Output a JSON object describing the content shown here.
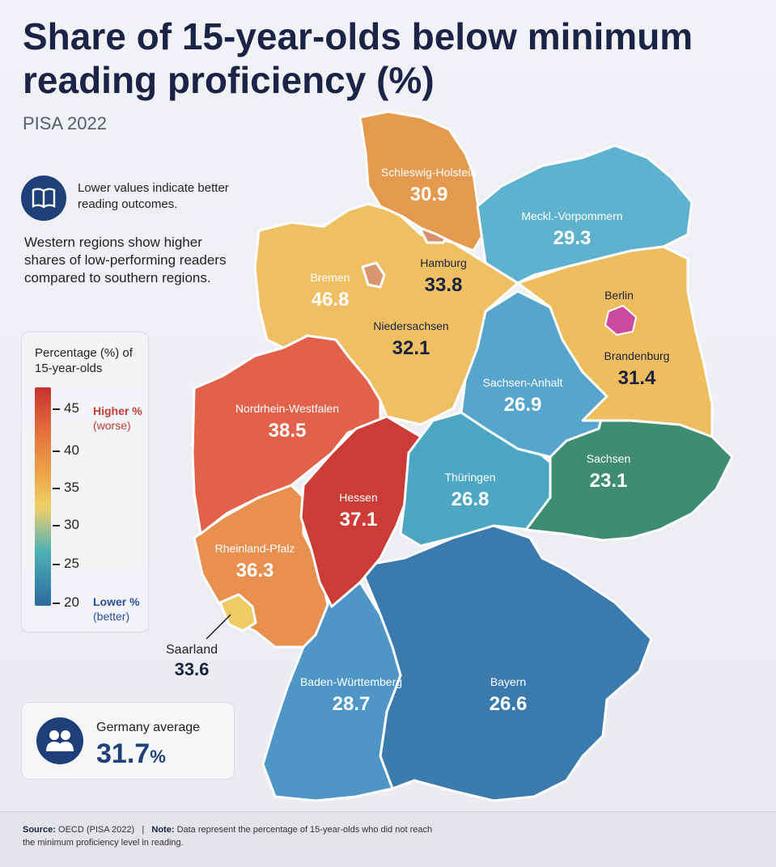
{
  "title": "Share of 15-year-olds below minimum reading proficiency (%)",
  "subtitle": "PISA 2022",
  "note_icon": "book-icon",
  "note": "Lower values indicate better reading outcomes.",
  "west_note": "Western regions show higher shares of low-performing readers compared to southern regions.",
  "legend": {
    "title": "Percentage (%) of 15-year-olds",
    "ticks": [
      "45",
      "40",
      "35",
      "30",
      "25",
      "20"
    ],
    "high_label": "Higher %",
    "high_sub": "(worse)",
    "low_label": "Lower %",
    "low_sub": "(better)",
    "scale_colors": [
      "#c4322e",
      "#e4703b",
      "#eca64a",
      "#efd06a",
      "#4fb1b5",
      "#2b6aa0"
    ]
  },
  "average": {
    "icon": "people-icon",
    "label": "Germany average",
    "value": "31.7",
    "unit": "%"
  },
  "regions": [
    {
      "name": "Schleswig-Holstein",
      "value": "30.9",
      "color": "#e49a4e"
    },
    {
      "name": "Meckl.-Vorpommern",
      "value": "29.3",
      "color": "#5fb2cd"
    },
    {
      "name": "Hamburg",
      "value": "33.8",
      "color": "#d98f6e"
    },
    {
      "name": "Bremen",
      "value": "46.8",
      "color": "#d9956f"
    },
    {
      "name": "Niedersachsen",
      "value": "32.1",
      "color": "#eebf63"
    },
    {
      "name": "Berlin",
      "value": "",
      "color": "#c94a9f"
    },
    {
      "name": "Brandenburg",
      "value": "31.4",
      "color": "#eebd5e"
    },
    {
      "name": "Sachsen-Anhalt",
      "value": "26.9",
      "color": "#57a4cc"
    },
    {
      "name": "Nordrhein-Westfalen",
      "value": "38.5",
      "color": "#e1614a"
    },
    {
      "name": "Sachsen",
      "value": "23.1",
      "color": "#3f8d71"
    },
    {
      "name": "Thüringen",
      "value": "26.8",
      "color": "#4da7c3"
    },
    {
      "name": "Hessen",
      "value": "37.1",
      "color": "#cc3c36"
    },
    {
      "name": "Rheinland-Pfalz",
      "value": "36.3",
      "color": "#e7904f"
    },
    {
      "name": "Saarland",
      "value": "33.6",
      "color": "#eecb65"
    },
    {
      "name": "Baden-Württemberg",
      "value": "28.7",
      "color": "#4d96c6"
    },
    {
      "name": "Bayern",
      "value": "26.6",
      "color": "#3a7aad"
    }
  ],
  "footer": {
    "source_label": "Source:",
    "source_text": "OECD (PISA 2022)",
    "separator": "|",
    "note_label": "Note:",
    "note_text": "Data represent the percentage of 15-year-olds who did not reach the minimum proficiency level in reading."
  }
}
